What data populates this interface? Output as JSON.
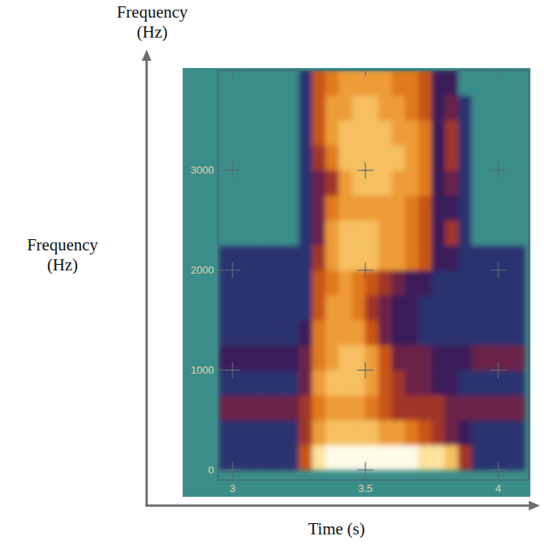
{
  "chart_data": {
    "type": "heatmap",
    "xlabel": "Time (s)",
    "ylabel": "Frequency (Hz)",
    "annotations": [
      "Frequency (Hz)"
    ],
    "xlim": [
      2.945,
      4.115
    ],
    "ylim": [
      -100,
      4000
    ],
    "xticks": [
      3,
      3.5,
      4
    ],
    "yticks": [
      0,
      1000,
      2000,
      3000
    ],
    "grid": true,
    "color_range": [
      0,
      10
    ],
    "x_edges": [
      2.95,
      3,
      3.05,
      3.1,
      3.15,
      3.2,
      3.25,
      3.3,
      3.35,
      3.4,
      3.45,
      3.5,
      3.55,
      3.6,
      3.65,
      3.7,
      3.75,
      3.8,
      3.85,
      3.9,
      3.95,
      4,
      4.05,
      4.1
    ],
    "y_edges": [
      0,
      250,
      500,
      750,
      1000,
      1250,
      1500,
      1750,
      2000,
      2250,
      2500,
      2750,
      3000,
      3250,
      3500,
      3750,
      4000
    ],
    "cells": [
      [
        1,
        1,
        1,
        1,
        1,
        1,
        5,
        9,
        10,
        10,
        10,
        10,
        10,
        10,
        10,
        9,
        9,
        8,
        4,
        1,
        1,
        1,
        1
      ],
      [
        1,
        1,
        1,
        1,
        1,
        1,
        4,
        7,
        8,
        8,
        8,
        8,
        7,
        7,
        6,
        5,
        4,
        3,
        2,
        1,
        1,
        1,
        1
      ],
      [
        3,
        3,
        3,
        3,
        3,
        3,
        4,
        6,
        7,
        7,
        7,
        6,
        5,
        4,
        4,
        4,
        4,
        3,
        3,
        3,
        3,
        3,
        3
      ],
      [
        1,
        1,
        1,
        1,
        1,
        1,
        3,
        7,
        8,
        8,
        8,
        7,
        5,
        4,
        3,
        3,
        2,
        2,
        1,
        1,
        1,
        1,
        1
      ],
      [
        2,
        2,
        2,
        2,
        2,
        2,
        3,
        6,
        7,
        8,
        8,
        7,
        5,
        3,
        3,
        3,
        2,
        2,
        2,
        3,
        3,
        3,
        3
      ],
      [
        1,
        1,
        1,
        1,
        1,
        1,
        2,
        6,
        7,
        7,
        7,
        5,
        3,
        2,
        2,
        1,
        1,
        1,
        1,
        1,
        1,
        1,
        1
      ],
      [
        1,
        1,
        1,
        1,
        1,
        1,
        1,
        5,
        7,
        7,
        6,
        4,
        3,
        2,
        2,
        1,
        1,
        1,
        1,
        1,
        1,
        1,
        1
      ],
      [
        1,
        1,
        1,
        1,
        1,
        1,
        1,
        5,
        6,
        7,
        6,
        5,
        4,
        3,
        2,
        2,
        1,
        1,
        1,
        1,
        1,
        1,
        1
      ],
      [
        1,
        1,
        1,
        1,
        1,
        1,
        1,
        4,
        7,
        8,
        8,
        8,
        7,
        7,
        6,
        5,
        2,
        2,
        1,
        1,
        1,
        1,
        1
      ],
      [
        0,
        0,
        0,
        0,
        0,
        0,
        1,
        3,
        7,
        8,
        8,
        8,
        7,
        7,
        6,
        5,
        2,
        4,
        1,
        0,
        0,
        0,
        0
      ],
      [
        0,
        0,
        0,
        0,
        0,
        0,
        1,
        3,
        6,
        7,
        7,
        7,
        7,
        7,
        6,
        5,
        2,
        2,
        1,
        0,
        0,
        0,
        0
      ],
      [
        0,
        0,
        0,
        0,
        0,
        0,
        1,
        3,
        4,
        7,
        8,
        8,
        8,
        7,
        7,
        6,
        2,
        3,
        1,
        0,
        0,
        0,
        0
      ],
      [
        0,
        0,
        0,
        0,
        0,
        0,
        1,
        4,
        6,
        8,
        8,
        8,
        8,
        8,
        7,
        6,
        2,
        4,
        1,
        0,
        0,
        0,
        0
      ],
      [
        0,
        0,
        0,
        0,
        0,
        0,
        1,
        5,
        7,
        8,
        8,
        8,
        8,
        7,
        7,
        6,
        2,
        4,
        1,
        0,
        0,
        0,
        0
      ],
      [
        0,
        0,
        0,
        0,
        0,
        0,
        1,
        5,
        7,
        7,
        8,
        8,
        7,
        7,
        6,
        5,
        2,
        3,
        1,
        0,
        0,
        0,
        0
      ],
      [
        0,
        0,
        0,
        0,
        0,
        0,
        1,
        5,
        6,
        7,
        7,
        7,
        7,
        6,
        6,
        5,
        2,
        2,
        0,
        0,
        0,
        0,
        0
      ]
    ]
  }
}
